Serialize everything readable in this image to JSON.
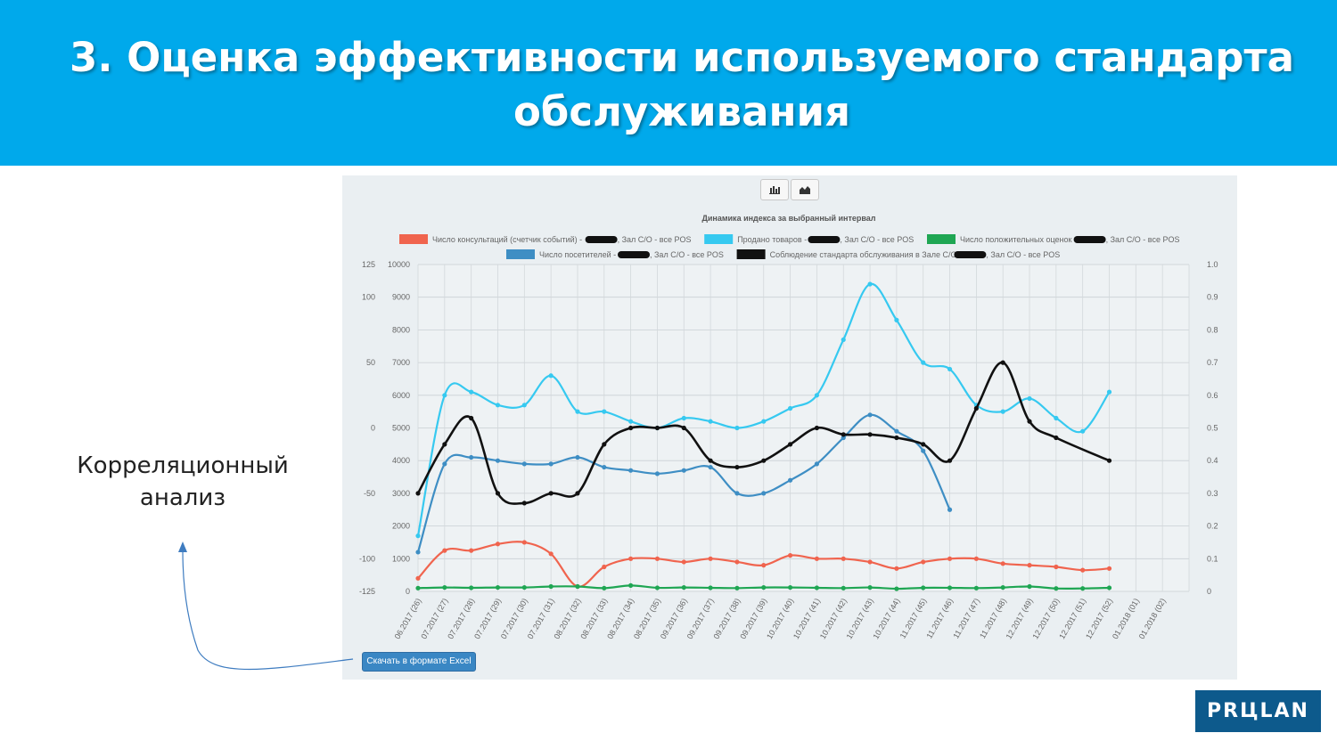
{
  "slide": {
    "title": "3. Оценка эффективности используемого стандарта обслуживания",
    "side_label": "Корреляционный анализ",
    "logo_text": "PRЦLAN"
  },
  "toolbar": {
    "bar_icon": "bar-chart-icon",
    "area_icon": "area-chart-icon"
  },
  "excel_button": {
    "label": "Скачать в формате Excel"
  },
  "chart_data": {
    "type": "line",
    "title": "Динамика индекса за выбранный интервал",
    "categories": [
      "06.2017 (26)",
      "07.2017 (27)",
      "07.2017 (28)",
      "07.2017 (29)",
      "07.2017 (30)",
      "07.2017 (31)",
      "08.2017 (32)",
      "08.2017 (33)",
      "08.2017 (34)",
      "08.2017 (35)",
      "09.2017 (36)",
      "09.2017 (37)",
      "09.2017 (38)",
      "09.2017 (39)",
      "10.2017 (40)",
      "10.2017 (41)",
      "10.2017 (42)",
      "10.2017 (43)",
      "10.2017 (44)",
      "11.2017 (45)",
      "11.2017 (46)",
      "11.2017 (47)",
      "11.2017 (48)",
      "12.2017 (49)",
      "12.2017 (50)",
      "12.2017 (51)",
      "12.2017 (52)",
      "01.2018 (01)",
      "01.2018 (02)"
    ],
    "y_left_outer": {
      "ticks": [
        "125",
        "100",
        "",
        "50",
        "",
        "0",
        "",
        "-50",
        "",
        "-100",
        "-125"
      ]
    },
    "y_left": {
      "ylim": [
        0,
        10000
      ],
      "ticks": [
        "10000",
        "9000",
        "8000",
        "7000",
        "6000",
        "5000",
        "4000",
        "3000",
        "2000",
        "1000",
        "0"
      ]
    },
    "y_right": {
      "ylim": [
        0,
        1.0
      ],
      "ticks": [
        "1.0",
        "0.9",
        "0.8",
        "0.7",
        "0.6",
        "0.5",
        "0.4",
        "0.3",
        "0.2",
        "0.1",
        "0"
      ]
    },
    "grid": true,
    "legend_placement": "top",
    "series": [
      {
        "name": "Число консультаций (счетчик событий) - ",
        "suffix": ", Зал С/О - все POS",
        "color": "#f0644e",
        "axis": "left",
        "values": [
          400,
          1250,
          1250,
          1450,
          1500,
          1150,
          150,
          750,
          1000,
          1000,
          900,
          1000,
          900,
          800,
          1100,
          1000,
          1000,
          900,
          700,
          900,
          1000,
          1000,
          850,
          800,
          750,
          650,
          700,
          null,
          null
        ]
      },
      {
        "name": "Продано товаров - ",
        "suffix": ", Зал С/О - все POS",
        "color": "#36c9f0",
        "axis": "left",
        "values": [
          1700,
          6000,
          6100,
          5700,
          5700,
          6600,
          5500,
          5500,
          5200,
          5000,
          5300,
          5200,
          5000,
          5200,
          5600,
          6000,
          7700,
          9400,
          8300,
          7000,
          6800,
          5700,
          5500,
          5900,
          5300,
          4900,
          6100,
          null,
          null
        ]
      },
      {
        "name": "Число положительных оценок - ",
        "suffix": ", Зал С/О - все POS",
        "color": "#1fa653",
        "axis": "left",
        "values": [
          100,
          120,
          110,
          120,
          120,
          150,
          150,
          100,
          180,
          110,
          120,
          110,
          100,
          120,
          120,
          110,
          100,
          120,
          80,
          110,
          110,
          100,
          120,
          150,
          90,
          90,
          110,
          null,
          null
        ]
      },
      {
        "name": "Число посетителей - ",
        "suffix": ", Зал С/О - все POS",
        "color": "#3e8ec4",
        "axis": "left",
        "values": [
          1200,
          3900,
          4100,
          4000,
          3900,
          3900,
          4100,
          3800,
          3700,
          3600,
          3700,
          3800,
          3000,
          3000,
          3400,
          3900,
          4700,
          5400,
          4900,
          4300,
          2500,
          null,
          null,
          null,
          null,
          null,
          null,
          null,
          null
        ]
      },
      {
        "name": "Соблюдение стандарта обслуживания в Зале С/О - ",
        "suffix": ", Зал С/О - все POS",
        "color": "#111111",
        "axis": "right",
        "values": [
          0.3,
          0.45,
          0.53,
          0.3,
          0.27,
          0.3,
          0.3,
          0.45,
          0.5,
          0.5,
          0.5,
          0.4,
          0.38,
          0.4,
          0.45,
          0.5,
          0.48,
          0.48,
          0.47,
          0.45,
          0.4,
          0.56,
          0.7,
          0.52,
          0.47,
          null,
          0.4,
          null,
          null
        ]
      }
    ]
  }
}
